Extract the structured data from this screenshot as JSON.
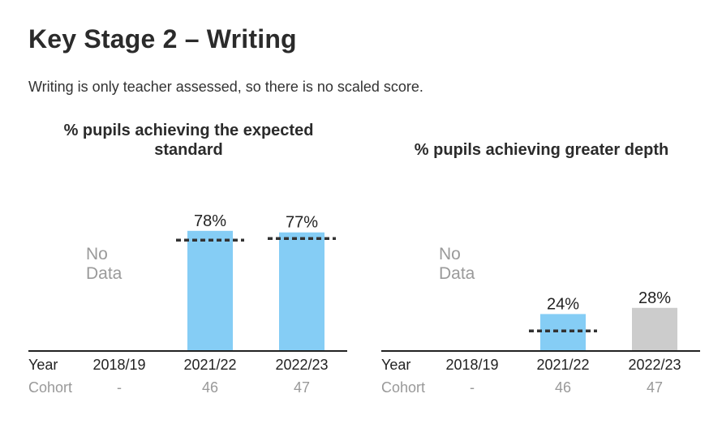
{
  "page": {
    "title": "Key Stage 2 – Writing",
    "subtitle": "Writing is only teacher assessed, so there is no scaled score."
  },
  "labels": {
    "year": "Year",
    "cohort": "Cohort",
    "no_data": "No Data"
  },
  "colors": {
    "bar_primary": "#85cdf5",
    "bar_secondary": "#cccccc",
    "benchmark": "#333333",
    "axis": "#222222"
  },
  "chart_data": [
    {
      "type": "bar",
      "title": "% pupils achieving the expected standard",
      "categories": [
        "2018/19",
        "2021/22",
        "2022/23"
      ],
      "values": [
        null,
        78,
        77
      ],
      "value_labels": [
        "",
        "78%",
        "77%"
      ],
      "benchmarks": [
        null,
        72,
        73
      ],
      "bar_colors": [
        "none",
        "primary",
        "primary"
      ],
      "cohort": [
        "-",
        "46",
        "47"
      ],
      "no_data_index": 0,
      "ylim": [
        0,
        100
      ]
    },
    {
      "type": "bar",
      "title": "% pupils achieving greater depth",
      "categories": [
        "2018/19",
        "2021/22",
        "2022/23"
      ],
      "values": [
        null,
        24,
        28
      ],
      "value_labels": [
        "",
        "24%",
        "28%"
      ],
      "benchmarks": [
        null,
        13,
        null
      ],
      "bar_colors": [
        "none",
        "primary",
        "secondary"
      ],
      "cohort": [
        "-",
        "46",
        "47"
      ],
      "no_data_index": 0,
      "ylim": [
        0,
        100
      ]
    }
  ]
}
